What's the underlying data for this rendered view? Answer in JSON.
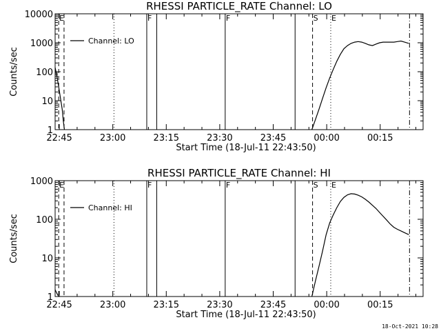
{
  "chart_data": [
    {
      "type": "line",
      "title": "RHESSI PARTICLE_RATE Channel: LO",
      "xlabel": "Start Time (18-Jul-11 22:43:50)",
      "ylabel": "Counts/sec",
      "y_scale": "log",
      "ylim": [
        1,
        10000
      ],
      "y_ticks": [
        1,
        10,
        100,
        1000,
        10000
      ],
      "y_tick_labels": [
        "1",
        "10",
        "100",
        "1000",
        "10000"
      ],
      "x_tick_labels": [
        "22:45",
        "23:00",
        "23:15",
        "23:30",
        "23:45",
        "00:00",
        "00:15"
      ],
      "legend": {
        "label": "Channel: LO",
        "placement": "top-left"
      },
      "markers": [
        {
          "label": "E",
          "x_min": 1.0,
          "style": "dashed"
        },
        {
          "label": "",
          "x_min": 2.5,
          "style": "dashed"
        },
        {
          "label": "",
          "x_min": 16.5,
          "style": "dotted"
        },
        {
          "label": "F",
          "x_min": 25.7,
          "style": "solid"
        },
        {
          "label": "",
          "x_min": 28.5,
          "style": "solid"
        },
        {
          "label": "F",
          "x_min": 47.7,
          "style": "solid"
        },
        {
          "label": "",
          "x_min": 67.3,
          "style": "solid"
        },
        {
          "label": "S",
          "x_min": 72.2,
          "style": "dashed"
        },
        {
          "label": "E",
          "x_min": 77.3,
          "style": "dotted"
        },
        {
          "label": "",
          "x_min": 99.4,
          "style": "dashdot"
        }
      ],
      "series": [
        {
          "name": "Channel: LO",
          "segments": [
            [
              [
                0.0,
                140
              ],
              [
                0.5,
                70
              ],
              [
                1.0,
                30
              ],
              [
                1.5,
                12
              ],
              [
                2.0,
                5
              ],
              [
                2.3,
                2
              ],
              [
                2.6,
                1
              ]
            ],
            [
              [
                72.0,
                1
              ],
              [
                73.0,
                2.2
              ],
              [
                74.0,
                5
              ],
              [
                75.0,
                12
              ],
              [
                76.0,
                28
              ],
              [
                77.0,
                60
              ],
              [
                78.0,
                120
              ],
              [
                79.0,
                230
              ],
              [
                80.0,
                400
              ],
              [
                81.0,
                620
              ],
              [
                82.0,
                800
              ],
              [
                83.0,
                950
              ],
              [
                84.0,
                1050
              ],
              [
                85.0,
                1100
              ],
              [
                86.0,
                1050
              ],
              [
                87.0,
                950
              ],
              [
                88.0,
                850
              ],
              [
                89.0,
                800
              ],
              [
                90.0,
                900
              ],
              [
                91.0,
                1000
              ],
              [
                92.0,
                1050
              ],
              [
                93.0,
                1050
              ],
              [
                94.0,
                1050
              ],
              [
                95.0,
                1050
              ],
              [
                96.0,
                1100
              ],
              [
                97.0,
                1150
              ],
              [
                98.0,
                1050
              ],
              [
                99.2,
                950
              ]
            ]
          ]
        }
      ]
    },
    {
      "type": "line",
      "title": "RHESSI PARTICLE_RATE Channel: HI",
      "xlabel": "Start Time (18-Jul-11 22:43:50)",
      "ylabel": "Counts/sec",
      "y_scale": "log",
      "ylim": [
        1,
        1000
      ],
      "y_ticks": [
        1,
        10,
        100,
        1000
      ],
      "y_tick_labels": [
        "1",
        "10",
        "100",
        "1000"
      ],
      "x_tick_labels": [
        "22:45",
        "23:00",
        "23:15",
        "23:30",
        "23:45",
        "00:00",
        "00:15"
      ],
      "legend": {
        "label": "Channel: HI",
        "placement": "top-left"
      },
      "markers": [
        {
          "label": "E",
          "x_min": 1.0,
          "style": "dashed"
        },
        {
          "label": "",
          "x_min": 2.5,
          "style": "dashed"
        },
        {
          "label": "",
          "x_min": 16.5,
          "style": "dotted"
        },
        {
          "label": "F",
          "x_min": 25.7,
          "style": "solid"
        },
        {
          "label": "",
          "x_min": 28.5,
          "style": "solid"
        },
        {
          "label": "F",
          "x_min": 47.7,
          "style": "solid"
        },
        {
          "label": "",
          "x_min": 67.3,
          "style": "solid"
        },
        {
          "label": "S",
          "x_min": 72.2,
          "style": "dashed"
        },
        {
          "label": "E",
          "x_min": 77.3,
          "style": "dotted"
        },
        {
          "label": "",
          "x_min": 99.4,
          "style": "dashdot"
        }
      ],
      "series": [
        {
          "name": "Channel: HI",
          "segments": [
            [
              [
                0.0,
                1.5
              ],
              [
                0.5,
                1.2
              ],
              [
                1.0,
                1
              ]
            ],
            [
              [
                72.0,
                1
              ],
              [
                73.0,
                2.5
              ],
              [
                74.0,
                6
              ],
              [
                75.0,
                15
              ],
              [
                76.0,
                40
              ],
              [
                77.0,
                80
              ],
              [
                78.0,
                130
              ],
              [
                79.0,
                200
              ],
              [
                80.0,
                290
              ],
              [
                81.0,
                370
              ],
              [
                82.0,
                430
              ],
              [
                83.0,
                460
              ],
              [
                84.0,
                450
              ],
              [
                85.0,
                420
              ],
              [
                86.0,
                380
              ],
              [
                87.0,
                330
              ],
              [
                88.0,
                280
              ],
              [
                89.0,
                230
              ],
              [
                90.0,
                190
              ],
              [
                91.0,
                150
              ],
              [
                92.0,
                120
              ],
              [
                93.0,
                95
              ],
              [
                94.0,
                75
              ],
              [
                95.0,
                62
              ],
              [
                96.0,
                55
              ],
              [
                97.0,
                50
              ],
              [
                98.0,
                45
              ],
              [
                99.2,
                40
              ]
            ]
          ]
        }
      ]
    }
  ],
  "timestamp": "18-Oct-2021 10:28"
}
